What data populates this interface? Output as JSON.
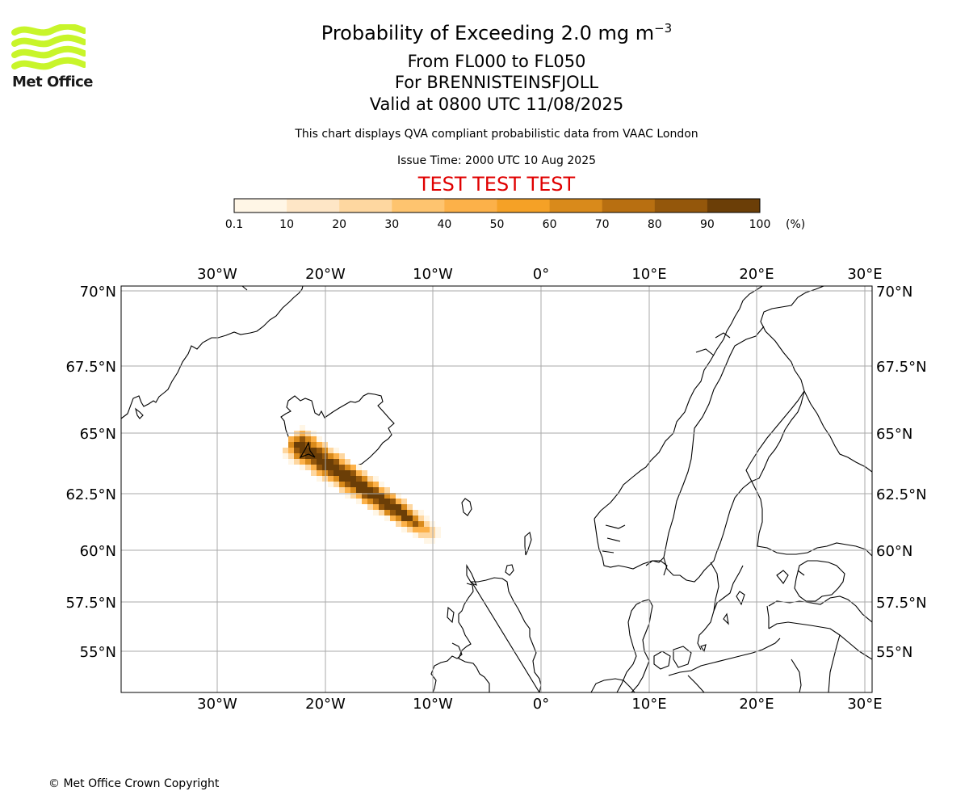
{
  "logo": {
    "text": "Met Office",
    "color": "#c8f52a"
  },
  "header": {
    "title_main": "Probability of Exceeding 2.0 mg m",
    "title_sup": "−3",
    "level_range": "From FL000 to FL050",
    "volcano": "For BRENNISTEINSFJOLL",
    "valid": "Valid at 0800 UTC 11/08/2025",
    "description": "This chart displays QVA compliant probabilistic data from VAAC London",
    "issue_time": "Issue Time: 2000 UTC 10 Aug 2025",
    "test_banner": "TEST TEST TEST",
    "test_color": "#e00000"
  },
  "colorbar": {
    "ticks": [
      "0.1",
      "10",
      "20",
      "30",
      "40",
      "50",
      "60",
      "70",
      "80",
      "90",
      "100"
    ],
    "unit": "(%)",
    "colors": [
      "#fff6e6",
      "#fee6c6",
      "#fed7a0",
      "#fec46f",
      "#fcb149",
      "#f5a126",
      "#d98a1b",
      "#b86f11",
      "#94570b",
      "#6b3e07"
    ]
  },
  "map": {
    "lon_labels": [
      "30°W",
      "20°W",
      "10°W",
      "0°",
      "10°E",
      "20°E",
      "30°E"
    ],
    "lat_labels": [
      "70°N",
      "67.5°N",
      "65°N",
      "62.5°N",
      "60°N",
      "57.5°N",
      "55°N"
    ],
    "plume_colors": [
      "#fff6e6",
      "#fed7a0",
      "#fcb149",
      "#d98a1b",
      "#94570b",
      "#6b3e07"
    ]
  },
  "footer": {
    "copyright": "© Met Office Crown Copyright"
  }
}
